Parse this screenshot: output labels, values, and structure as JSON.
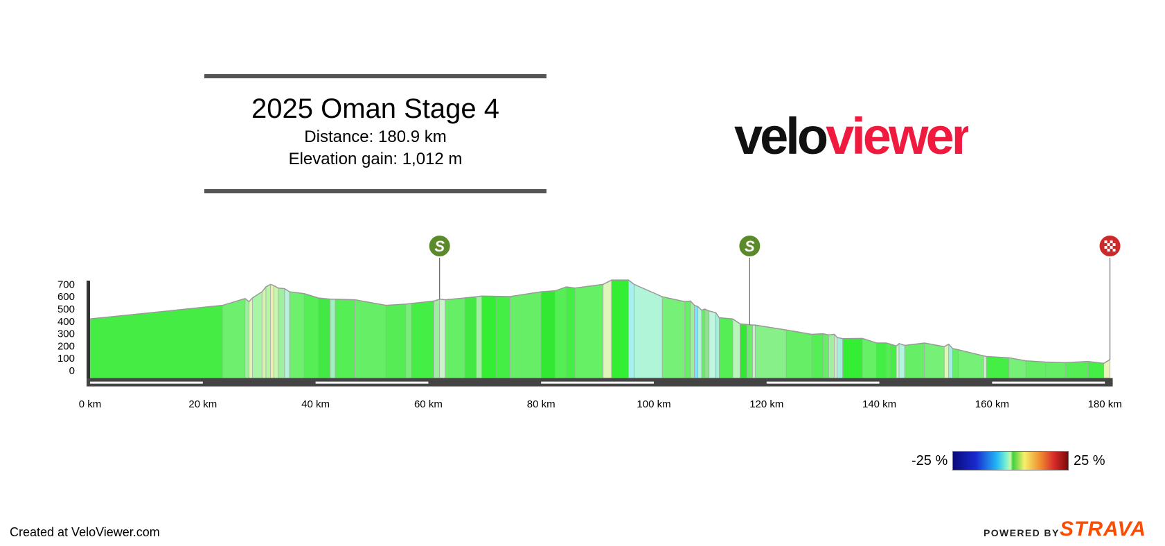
{
  "header": {
    "title": "2025 Oman Stage 4",
    "distance": "Distance: 180.9 km",
    "elevation_gain": "Elevation gain: 1,012 m"
  },
  "logo": {
    "part1": "velo",
    "part2": "viewer",
    "color1": "#111111",
    "color2": "#f0193e"
  },
  "legend": {
    "min_label": "-25 %",
    "max_label": "25 %"
  },
  "footer": {
    "created": "Created at VeloViewer.com",
    "powered_by": "POWERED BY",
    "brand": "STRAVA",
    "brand_color": "#fc4c02"
  },
  "chart_data": {
    "type": "area",
    "title": "2025 Oman Stage 4",
    "xlabel": "",
    "ylabel": "",
    "x_unit": "km",
    "xlim": [
      0,
      180.9
    ],
    "ylim": [
      0,
      700
    ],
    "y_ticks": [
      0,
      100,
      200,
      300,
      400,
      500,
      600,
      700
    ],
    "x_ticks": [
      "0 km",
      "20 km",
      "40 km",
      "60 km",
      "80 km",
      "100 km",
      "120 km",
      "140 km",
      "160 km",
      "180 km"
    ],
    "x_tick_values": [
      0,
      20,
      40,
      60,
      80,
      100,
      120,
      140,
      160,
      180
    ],
    "grid": false,
    "gradient_scale": [
      -25,
      25
    ],
    "markers": [
      {
        "type": "sprint",
        "label": "S",
        "km": 62,
        "color": "#5a8a2a"
      },
      {
        "type": "sprint",
        "label": "S",
        "km": 117,
        "color": "#5a8a2a"
      },
      {
        "type": "finish",
        "label": "",
        "km": 180.9,
        "color": "#cc2a2a"
      }
    ],
    "points": [
      {
        "km": 0,
        "ele": 420,
        "c": "#44ec44"
      },
      {
        "km": 23.5,
        "ele": 530,
        "c": "#6ef06e"
      },
      {
        "km": 27.5,
        "ele": 585,
        "c": "#9cf29c"
      },
      {
        "km": 28.2,
        "ele": 560,
        "c": "#e2f5b8"
      },
      {
        "km": 28.8,
        "ele": 590,
        "c": "#a8f5a8"
      },
      {
        "km": 30.5,
        "ele": 640,
        "c": "#d4f5b0"
      },
      {
        "km": 31.2,
        "ele": 680,
        "c": "#b6f5a6"
      },
      {
        "km": 32,
        "ele": 700,
        "c": "#e8f0b0"
      },
      {
        "km": 32.6,
        "ele": 690,
        "c": "#c8f5b0"
      },
      {
        "km": 33.4,
        "ele": 670,
        "c": "#9df09d"
      },
      {
        "km": 34.5,
        "ele": 665,
        "c": "#b8f0e0"
      },
      {
        "km": 35.4,
        "ele": 640,
        "c": "#6ef06e"
      },
      {
        "km": 38,
        "ele": 625,
        "c": "#55ee55"
      },
      {
        "km": 40.5,
        "ele": 590,
        "c": "#44e844"
      },
      {
        "km": 42.6,
        "ele": 580,
        "c": "#a0f0c0"
      },
      {
        "km": 43.5,
        "ele": 580,
        "c": "#55ee55"
      },
      {
        "km": 47,
        "ele": 575,
        "c": "#66ee66"
      },
      {
        "km": 52.5,
        "ele": 530,
        "c": "#55ec55"
      },
      {
        "km": 56,
        "ele": 540,
        "c": "#77f077"
      },
      {
        "km": 57,
        "ele": 545,
        "c": "#44ee44"
      },
      {
        "km": 61,
        "ele": 565,
        "c": "#9cf09c"
      },
      {
        "km": 62,
        "ele": 580,
        "c": "#c8f5c8"
      },
      {
        "km": 63,
        "ele": 575,
        "c": "#66ee66"
      },
      {
        "km": 66.5,
        "ele": 590,
        "c": "#44e844"
      },
      {
        "km": 68.5,
        "ele": 600,
        "c": "#a0f0a0"
      },
      {
        "km": 69.5,
        "ele": 605,
        "c": "#33ee33"
      },
      {
        "km": 72,
        "ele": 603,
        "c": "#44ee44"
      },
      {
        "km": 74.5,
        "ele": 601,
        "c": "#66ee66"
      },
      {
        "km": 80,
        "ele": 640,
        "c": "#33e833"
      },
      {
        "km": 82.5,
        "ele": 648,
        "c": "#55ee55"
      },
      {
        "km": 84.5,
        "ele": 680,
        "c": "#44ee44"
      },
      {
        "km": 86,
        "ele": 670,
        "c": "#66f066"
      },
      {
        "km": 91,
        "ele": 700,
        "c": "#e0f5b8"
      },
      {
        "km": 92.5,
        "ele": 735,
        "c": "#33ee33"
      },
      {
        "km": 95.5,
        "ele": 735,
        "c": "#aaeeee"
      },
      {
        "km": 96.5,
        "ele": 700,
        "c": "#b0f5d8"
      },
      {
        "km": 101.5,
        "ele": 600,
        "c": "#77f077"
      },
      {
        "km": 105.5,
        "ele": 560,
        "c": "#66ee66"
      },
      {
        "km": 106.5,
        "ele": 565,
        "c": "#9cf09c"
      },
      {
        "km": 107.2,
        "ele": 530,
        "c": "#80e0ff"
      },
      {
        "km": 107.8,
        "ele": 520,
        "c": "#b0f5d8"
      },
      {
        "km": 108.5,
        "ele": 490,
        "c": "#66ee66"
      },
      {
        "km": 109,
        "ele": 500,
        "c": "#90e090"
      },
      {
        "km": 109.8,
        "ele": 485,
        "c": "#c0f5e0"
      },
      {
        "km": 111,
        "ele": 470,
        "c": "#a0f0e0"
      },
      {
        "km": 111.6,
        "ele": 430,
        "c": "#55ee55"
      },
      {
        "km": 114,
        "ele": 420,
        "c": "#b8f5b8"
      },
      {
        "km": 115.3,
        "ele": 380,
        "c": "#33e833"
      },
      {
        "km": 116.5,
        "ele": 375,
        "c": "#66ee66"
      },
      {
        "km": 117.5,
        "ele": 370,
        "c": "#c0f5c0"
      },
      {
        "km": 118,
        "ele": 370,
        "c": "#88f088"
      },
      {
        "km": 123.5,
        "ele": 330,
        "c": "#66ee66"
      },
      {
        "km": 128,
        "ele": 295,
        "c": "#55ee55"
      },
      {
        "km": 130,
        "ele": 300,
        "c": "#66ee66"
      },
      {
        "km": 131,
        "ele": 290,
        "c": "#a0f0a0"
      },
      {
        "km": 132,
        "ele": 295,
        "c": "#c8f0c0"
      },
      {
        "km": 132.5,
        "ele": 270,
        "c": "#a0f0e0"
      },
      {
        "km": 133.5,
        "ele": 260,
        "c": "#33ee33"
      },
      {
        "km": 137,
        "ele": 262,
        "c": "#66f066"
      },
      {
        "km": 139.5,
        "ele": 225,
        "c": "#44ee44"
      },
      {
        "km": 141.2,
        "ele": 225,
        "c": "#55ec55"
      },
      {
        "km": 142,
        "ele": 215,
        "c": "#44ee44"
      },
      {
        "km": 143,
        "ele": 200,
        "c": "#c8f5c8"
      },
      {
        "km": 143.5,
        "ele": 220,
        "c": "#b0f5e0"
      },
      {
        "km": 144.5,
        "ele": 205,
        "c": "#66ee66"
      },
      {
        "km": 148,
        "ele": 225,
        "c": "#77f077"
      },
      {
        "km": 151.5,
        "ele": 195,
        "c": "#e0f5b8"
      },
      {
        "km": 152.3,
        "ele": 215,
        "c": "#a0f0e0"
      },
      {
        "km": 153,
        "ele": 180,
        "c": "#66ee66"
      },
      {
        "km": 154,
        "ele": 170,
        "c": "#77f077"
      },
      {
        "km": 158.5,
        "ele": 120,
        "c": "#c8f5c8"
      },
      {
        "km": 159,
        "ele": 115,
        "c": "#44ee44"
      },
      {
        "km": 163,
        "ele": 105,
        "c": "#77f077"
      },
      {
        "km": 166,
        "ele": 80,
        "c": "#66ee66"
      },
      {
        "km": 169.5,
        "ele": 70,
        "c": "#66ee66"
      },
      {
        "km": 173,
        "ele": 65,
        "c": "#55ee55"
      },
      {
        "km": 177,
        "ele": 75,
        "c": "#44ee44"
      },
      {
        "km": 179.8,
        "ele": 60,
        "c": "#e8f5b8"
      },
      {
        "km": 180.9,
        "ele": 90,
        "c": "#e8f5b8"
      }
    ]
  }
}
